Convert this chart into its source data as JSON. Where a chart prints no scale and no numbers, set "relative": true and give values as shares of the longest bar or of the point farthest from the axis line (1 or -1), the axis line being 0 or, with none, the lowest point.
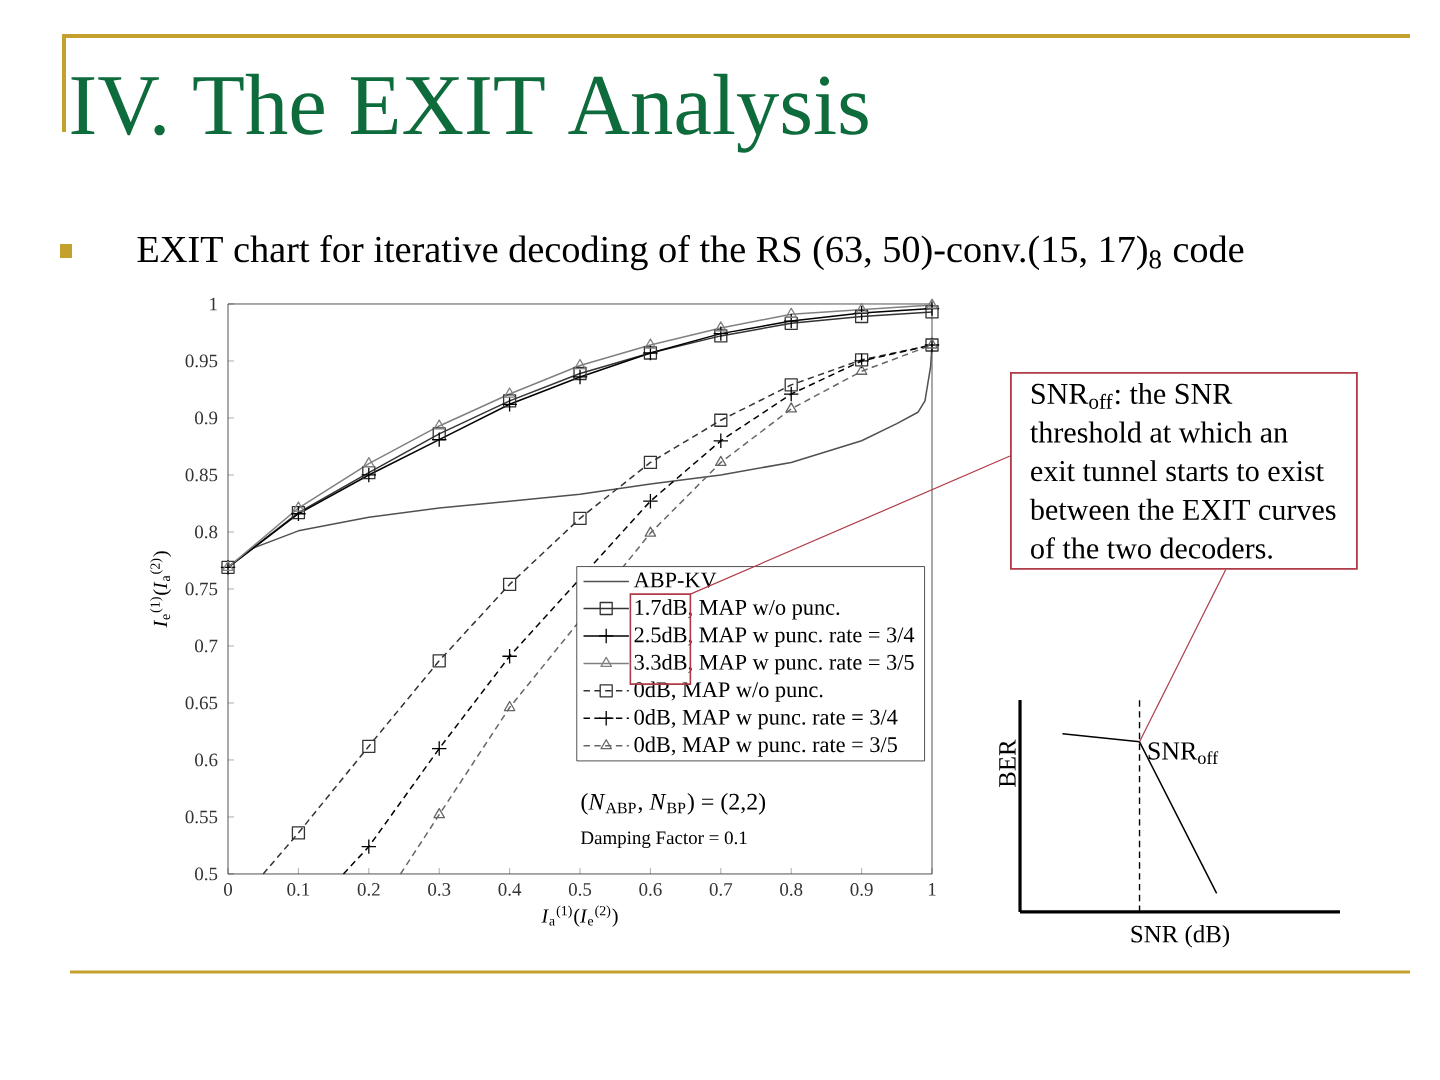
{
  "chart_data": [
    {
      "type": "line",
      "title": "IV. The EXIT Analysis",
      "subtitle": "EXIT chart for iterative decoding of the RS (63, 50)-conv.(15, 17)$_{8}$ code",
      "xlabel": "*I*$_{a}$$^{(1)}$(*I*$_{e}$$^{(2)}$)",
      "ylabel": "*I*$_{e}$$^{(1)}$(*I*$_{a}$$^{(2)}$)",
      "xlim": [
        0,
        1
      ],
      "ylim": [
        0.5,
        1
      ],
      "xticks": [
        0,
        0.1,
        0.2,
        0.3,
        0.4,
        0.5,
        0.6,
        0.7,
        0.8,
        0.9,
        1
      ],
      "yticks": [
        0.5,
        0.55,
        0.6,
        0.65,
        0.7,
        0.75,
        0.8,
        0.85,
        0.9,
        0.95,
        1
      ],
      "legend": "bottom right",
      "annotations": [
        "(*N*$_{ABP}$, *N*$_{BP}$) = (2,2)",
        "Damping Factor = 0.1"
      ],
      "series": [
        {
          "name": "ABP-KV",
          "color": "#505050",
          "line_style": "solid",
          "x": [
            0,
            0.036,
            0.1,
            0.2,
            0.3,
            0.4,
            0.5,
            0.6,
            0.7,
            0.8,
            0.9,
            0.95,
            0.98,
            0.99,
            0.998,
            1
          ],
          "values": [
            0.769,
            0.786,
            0.801,
            0.813,
            0.821,
            0.827,
            0.833,
            0.842,
            0.85,
            0.861,
            0.88,
            0.895,
            0.905,
            0.915,
            0.945,
            0.964
          ]
        },
        {
          "name": "1.7dB, MAP w/o punc.",
          "color": "#333333",
          "marker": "square",
          "line_style": "solid",
          "x": [
            0,
            0.1,
            0.2,
            0.3,
            0.4,
            0.5,
            0.6,
            0.7,
            0.8,
            0.9,
            1
          ],
          "values": [
            0.769,
            0.817,
            0.852,
            0.886,
            0.915,
            0.939,
            0.957,
            0.972,
            0.983,
            0.989,
            0.993
          ]
        },
        {
          "name": "2.5dB, MAP w punc. rate = 3/4",
          "color": "#000000",
          "marker": "cross",
          "line_style": "solid",
          "x": [
            0,
            0.1,
            0.2,
            0.3,
            0.4,
            0.5,
            0.6,
            0.7,
            0.8,
            0.9,
            1
          ],
          "values": [
            0.769,
            0.816,
            0.85,
            0.881,
            0.912,
            0.936,
            0.957,
            0.974,
            0.985,
            0.992,
            0.996
          ]
        },
        {
          "name": "3.3dB, MAP w punc. rate = 3/5",
          "color": "#808080",
          "marker": "triangle",
          "line_style": "solid",
          "x": [
            0,
            0.1,
            0.2,
            0.3,
            0.4,
            0.5,
            0.6,
            0.7,
            0.8,
            0.9,
            1
          ],
          "values": [
            0.769,
            0.821,
            0.86,
            0.893,
            0.921,
            0.946,
            0.964,
            0.979,
            0.991,
            0.995,
            0.999
          ]
        },
        {
          "name": "0dB, MAP w/o punc.",
          "color": "#333333",
          "marker": "square",
          "line_style": "dashed",
          "x": [
            0.05,
            0.1,
            0.2,
            0.3,
            0.4,
            0.5,
            0.6,
            0.7,
            0.8,
            0.9,
            1
          ],
          "values": [
            0.5,
            0.536,
            0.612,
            0.687,
            0.754,
            0.812,
            0.861,
            0.898,
            0.929,
            0.951,
            0.964
          ]
        },
        {
          "name": "0dB, MAP w punc. rate = 3/4",
          "color": "#000000",
          "marker": "cross",
          "line_style": "dashed",
          "x": [
            0.164,
            0.2,
            0.3,
            0.4,
            0.5,
            0.6,
            0.7,
            0.8,
            0.9,
            1
          ],
          "values": [
            0.5,
            0.524,
            0.61,
            0.691,
            null,
            0.827,
            0.88,
            0.921,
            0.95,
            0.964
          ]
        },
        {
          "name": "0dB, MAP w punc. rate = 3/5",
          "color": "#666666",
          "marker": "triangle",
          "line_style": "dashed",
          "x": [
            0.245,
            0.3,
            0.4,
            0.5,
            0.6,
            0.7,
            0.8,
            0.9,
            1
          ],
          "values": [
            0.5,
            0.552,
            0.646,
            null,
            0.799,
            0.861,
            0.908,
            0.941,
            0.964
          ]
        }
      ]
    },
    {
      "type": "line",
      "relative": true,
      "xlabel": "SNR (dB)",
      "ylabel": "BER",
      "categories": [
        null,
        null,
        null
      ],
      "values": [
        1,
        0.955,
        0.104
      ],
      "color": "#000000",
      "annotations": [
        "SNR$_{off}$: the SNR threshold at which an exit tunnel starts to exist between the EXIT curves of the two decoders.",
        "SNR$_{off}$"
      ]
    }
  ]
}
